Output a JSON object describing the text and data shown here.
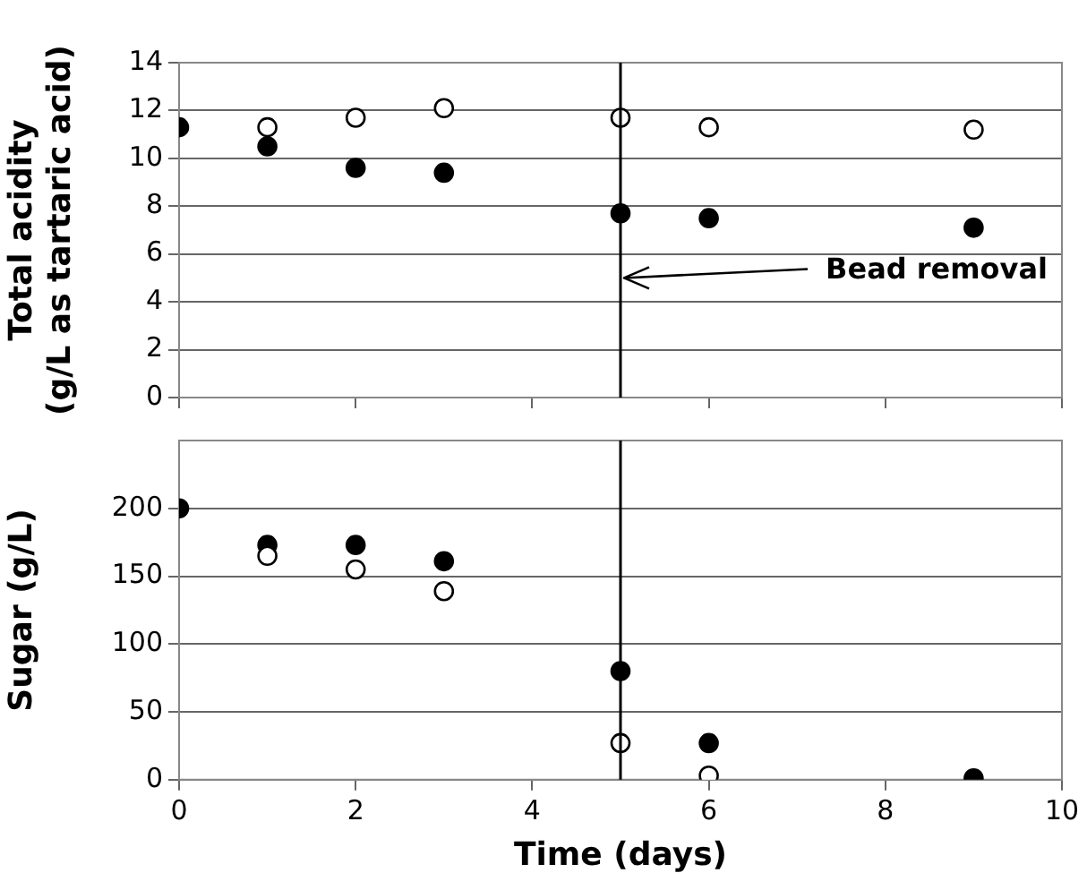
{
  "chart_data": [
    {
      "type": "scatter",
      "ylabel": "Total acidity (g/L as tartaric acid)",
      "x": [
        0,
        1,
        2,
        3,
        5,
        6,
        9
      ],
      "series": [
        {
          "color": "#ffffff",
          "values": [
            null,
            11.3,
            11.7,
            12.1,
            11.7,
            11.3,
            11.2
          ]
        },
        {
          "color": "#000000",
          "values": [
            11.3,
            10.5,
            9.6,
            9.4,
            7.7,
            7.5,
            7.1
          ]
        }
      ],
      "xlim": [
        0,
        10
      ],
      "xticks": [
        {
          "value": 0,
          "label": null
        },
        {
          "value": 2,
          "label": null
        },
        {
          "value": 4,
          "label": null
        },
        {
          "value": 6,
          "label": null
        },
        {
          "value": 8,
          "label": null
        },
        {
          "value": 10,
          "label": null
        }
      ],
      "ylim": [
        0,
        14
      ],
      "yticks": [
        0,
        2,
        4,
        6,
        8,
        10,
        12,
        14
      ],
      "tick_labels": "y",
      "grid": "y",
      "legend": false,
      "marker": "circle",
      "ref_lines": [
        {
          "axis": "x",
          "value": 5
        }
      ],
      "annotations": [
        {
          "text": "Bead removal",
          "x": 5,
          "y": 5
        }
      ]
    },
    {
      "type": "scatter",
      "xlabel": "Time (days)",
      "ylabel": "Sugar (g/L)",
      "x": [
        0,
        1,
        2,
        3,
        5,
        6,
        9
      ],
      "series": [
        {
          "color": "#ffffff",
          "values": [
            null,
            165,
            155,
            139,
            27,
            3,
            null
          ]
        },
        {
          "color": "#000000",
          "values": [
            200,
            173,
            173,
            161,
            80,
            27,
            1
          ]
        }
      ],
      "xlim": [
        0,
        10
      ],
      "xticks": [
        0,
        2,
        4,
        6,
        8,
        10
      ],
      "ylim": [
        0,
        250
      ],
      "yticks": [
        0,
        50,
        100,
        150,
        200
      ],
      "grid": "y",
      "legend": false,
      "marker": "circle",
      "ref_lines": [
        {
          "axis": "x",
          "value": 5
        }
      ]
    }
  ]
}
